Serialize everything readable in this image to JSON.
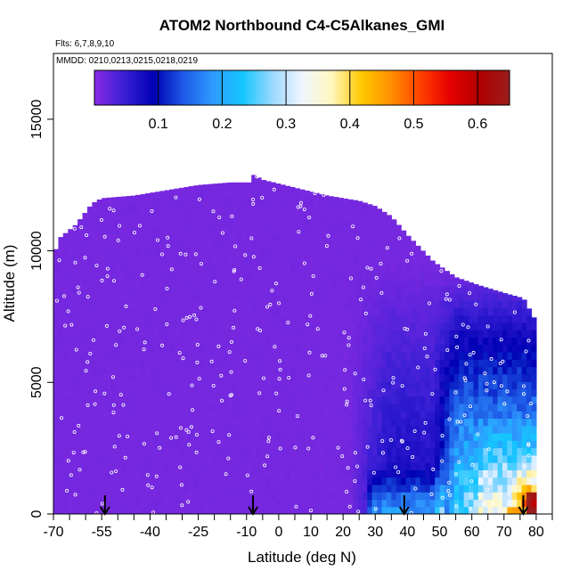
{
  "chart_data": {
    "type": "heatmap",
    "title": "ATOM2 Northbound C4-C5Alkanes_GMI",
    "flights_note": "Flts: 6,7,8,9,10",
    "dates_note": "MMDD: 0210,0213,0215,0218,0219",
    "xlabel": "Latitude (deg N)",
    "ylabel": "Altitude (m)",
    "xlim": [
      -70,
      85
    ],
    "ylim": [
      0,
      17500
    ],
    "x_ticks": [
      -70,
      -55,
      -40,
      -25,
      -10,
      0,
      10,
      20,
      30,
      40,
      50,
      60,
      70,
      80
    ],
    "x_minor_ticks": [
      -65,
      -60,
      -50,
      -45,
      -35,
      -30,
      -20,
      -15,
      -5,
      5,
      15,
      25,
      35,
      45,
      55,
      65,
      75,
      85
    ],
    "y_ticks": [
      0,
      5000,
      10000,
      15000
    ],
    "colorbar": {
      "min": 0,
      "max": 0.65,
      "ticks": [
        0.1,
        0.2,
        0.3,
        0.4,
        0.5,
        0.6
      ],
      "tick_labels": [
        "0.1",
        "0.2",
        "0.3",
        "0.4",
        "0.5",
        "0.6"
      ],
      "colors": [
        "#8a2be2",
        "#3a1fd6",
        "#0000b4",
        "#1e5ae6",
        "#2f9bff",
        "#14c6ff",
        "#9ad8ff",
        "#f0f6ff",
        "#fff7c0",
        "#ffc800",
        "#ff9000",
        "#ff4000",
        "#e60000",
        "#b00000",
        "#9a1e1e"
      ]
    },
    "field_summary": {
      "background_value": 0.01,
      "description_values": [
        {
          "lat_range": [
            -70,
            25
          ],
          "alt_range": [
            0,
            12500
          ],
          "value": 0.01
        },
        {
          "lat_range": [
            25,
            50
          ],
          "alt_range": [
            0,
            9000
          ],
          "value": 0.06
        },
        {
          "lat_range": [
            30,
            50
          ],
          "alt_range": [
            0,
            1500
          ],
          "value": 0.2
        },
        {
          "lat_range": [
            50,
            70
          ],
          "alt_range": [
            0,
            8000
          ],
          "value": 0.2
        },
        {
          "lat_range": [
            58,
            72
          ],
          "alt_range": [
            0,
            3000
          ],
          "value": 0.3
        },
        {
          "lat_range": [
            72,
            80
          ],
          "alt_range": [
            0,
            2500
          ],
          "value": 0.4
        },
        {
          "lat_range": [
            78,
            80
          ],
          "alt_range": [
            0,
            600
          ],
          "value": 0.6
        }
      ]
    },
    "arrow_markers_lat": [
      -54,
      -8,
      39,
      76
    ],
    "legend": "none",
    "grid": false
  }
}
